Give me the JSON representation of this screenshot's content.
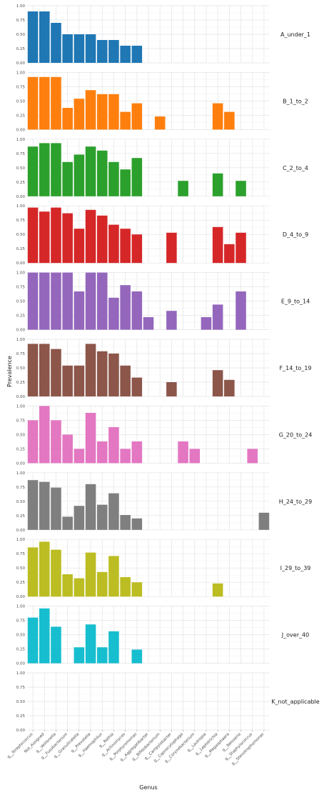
{
  "chart_data": {
    "type": "bar",
    "xlabel": "Genus",
    "ylabel": "Prevalence",
    "ylim": [
      0,
      1
    ],
    "yticks": [
      "0.00",
      "0.25",
      "0.50",
      "0.75",
      "1.00"
    ],
    "grid": true,
    "categories": [
      "g__Streptococcus",
      "Not_Assigned",
      "g__Veillonella",
      "g__Fusobacterium",
      "g__Granulicatella",
      "g__Prevotella",
      "g__Haemophilus",
      "g__Rothia",
      "g__Actinomyces",
      "g__Porphyromonas",
      "g__Aggregatibacter",
      "g__Bifidobacterium",
      "g__Campylobacter",
      "g__Capnocytophaga",
      "g__Corynebacterium",
      "g__Lautropia",
      "g__Leptotrichia",
      "g__Megasphaera",
      "g__Neisseria",
      "g__Staphylococcus",
      "g__Stenotrophomonas"
    ],
    "series": [
      {
        "name": "A_under_1",
        "color": "#1f77b4",
        "values": [
          0.9,
          0.9,
          0.7,
          0.5,
          0.5,
          0.5,
          0.4,
          0.4,
          0.3,
          0.3,
          0,
          0,
          0,
          0,
          0,
          0,
          0,
          0,
          0,
          0,
          0
        ]
      },
      {
        "name": "B_1_to_2",
        "color": "#ff7f0e",
        "values": [
          0.92,
          0.92,
          0.92,
          0.38,
          0.54,
          0.69,
          0.62,
          0.62,
          0.31,
          0.46,
          0,
          0.23,
          0,
          0,
          0,
          0,
          0.46,
          0.31,
          0,
          0,
          0
        ]
      },
      {
        "name": "C_2_to_4",
        "color": "#2ca02c",
        "values": [
          0.87,
          0.93,
          0.93,
          0.6,
          0.73,
          0.87,
          0.8,
          0.6,
          0.47,
          0.67,
          0,
          0,
          0,
          0.27,
          0,
          0,
          0.4,
          0,
          0.27,
          0,
          0
        ]
      },
      {
        "name": "D_4_to_9",
        "color": "#d62728",
        "values": [
          0.97,
          0.9,
          0.97,
          0.87,
          0.6,
          0.93,
          0.83,
          0.67,
          0.6,
          0.5,
          0,
          0,
          0.53,
          0,
          0,
          0,
          0.63,
          0.33,
          0.53,
          0,
          0
        ]
      },
      {
        "name": "E_9_to_14",
        "color": "#9467bd",
        "values": [
          1.0,
          1.0,
          1.0,
          1.0,
          0.67,
          1.0,
          1.0,
          0.56,
          0.78,
          0.67,
          0.22,
          0,
          0.33,
          0,
          0,
          0.22,
          0.44,
          0,
          0.67,
          0,
          0
        ]
      },
      {
        "name": "F_14_to_19",
        "color": "#8c564b",
        "values": [
          0.92,
          0.92,
          0.83,
          0.54,
          0.54,
          0.92,
          0.79,
          0.75,
          0.54,
          0.33,
          0,
          0,
          0.25,
          0,
          0,
          0,
          0.46,
          0.29,
          0,
          0,
          0
        ]
      },
      {
        "name": "G_20_to_24",
        "color": "#e377c2",
        "values": [
          0.75,
          1.0,
          0.75,
          0.5,
          0.25,
          0.88,
          0.38,
          0.63,
          0.25,
          0.38,
          0,
          0,
          0,
          0.38,
          0.25,
          0,
          0,
          0,
          0,
          0.25,
          0
        ]
      },
      {
        "name": "H_24_to_29",
        "color": "#7f7f7f",
        "values": [
          0.87,
          0.84,
          0.74,
          0.23,
          0.42,
          0.8,
          0.44,
          0.64,
          0.26,
          0.2,
          0,
          0,
          0,
          0,
          0,
          0,
          0,
          0,
          0,
          0,
          0.3
        ]
      },
      {
        "name": "I_29_to_39",
        "color": "#bcbd22",
        "values": [
          0.86,
          0.96,
          0.82,
          0.39,
          0.32,
          0.77,
          0.43,
          0.71,
          0.34,
          0.25,
          0,
          0,
          0,
          0,
          0,
          0,
          0.23,
          0,
          0,
          0,
          0
        ]
      },
      {
        "name": "J_over_40",
        "color": "#17becf",
        "values": [
          0.8,
          0.96,
          0.64,
          0,
          0.28,
          0.68,
          0.28,
          0.56,
          0,
          0.24,
          0,
          0,
          0,
          0,
          0,
          0,
          0,
          0,
          0,
          0,
          0
        ]
      },
      {
        "name": "K_not_applicable",
        "color": "#cccccc",
        "values": [
          0,
          0,
          0,
          0,
          0,
          0,
          0,
          0,
          0,
          0,
          0,
          0,
          0,
          0,
          0,
          0,
          0,
          0,
          0,
          0,
          0
        ]
      }
    ]
  }
}
